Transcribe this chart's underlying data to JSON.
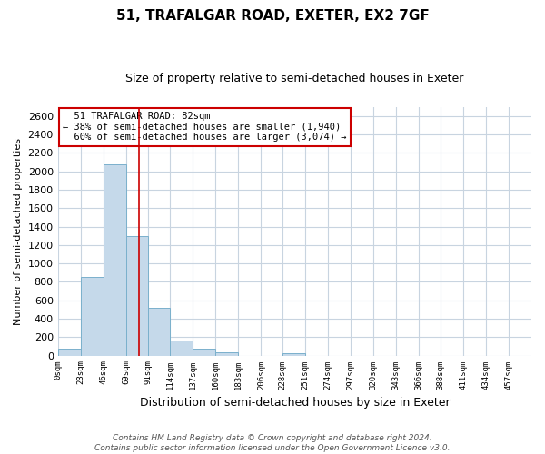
{
  "title": "51, TRAFALGAR ROAD, EXETER, EX2 7GF",
  "subtitle": "Size of property relative to semi-detached houses in Exeter",
  "xlabel": "Distribution of semi-detached houses by size in Exeter",
  "ylabel": "Number of semi-detached properties",
  "bin_labels": [
    "0sqm",
    "23sqm",
    "46sqm",
    "69sqm",
    "91sqm",
    "114sqm",
    "137sqm",
    "160sqm",
    "183sqm",
    "206sqm",
    "228sqm",
    "251sqm",
    "274sqm",
    "297sqm",
    "320sqm",
    "343sqm",
    "366sqm",
    "388sqm",
    "411sqm",
    "434sqm",
    "457sqm"
  ],
  "bin_values": [
    75,
    855,
    2075,
    1295,
    515,
    160,
    75,
    35,
    0,
    0,
    25,
    0,
    0,
    0,
    0,
    0,
    0,
    0,
    0,
    0
  ],
  "bar_color": "#c5d9ea",
  "bar_edge_color": "#7ab0cc",
  "ylim": [
    0,
    2700
  ],
  "yticks": [
    0,
    200,
    400,
    600,
    800,
    1000,
    1200,
    1400,
    1600,
    1800,
    2000,
    2200,
    2400,
    2600
  ],
  "property_size": 82,
  "property_label": "51 TRAFALGAR ROAD: 82sqm",
  "pct_smaller": 38,
  "count_smaller": 1940,
  "pct_larger": 60,
  "count_larger": 3074,
  "annotation_box_color": "#ffffff",
  "annotation_box_edge": "#cc0000",
  "vline_color": "#cc0000",
  "footer_line1": "Contains HM Land Registry data © Crown copyright and database right 2024.",
  "footer_line2": "Contains public sector information licensed under the Open Government Licence v3.0.",
  "bg_color": "#ffffff",
  "grid_color": "#c8d4e0"
}
